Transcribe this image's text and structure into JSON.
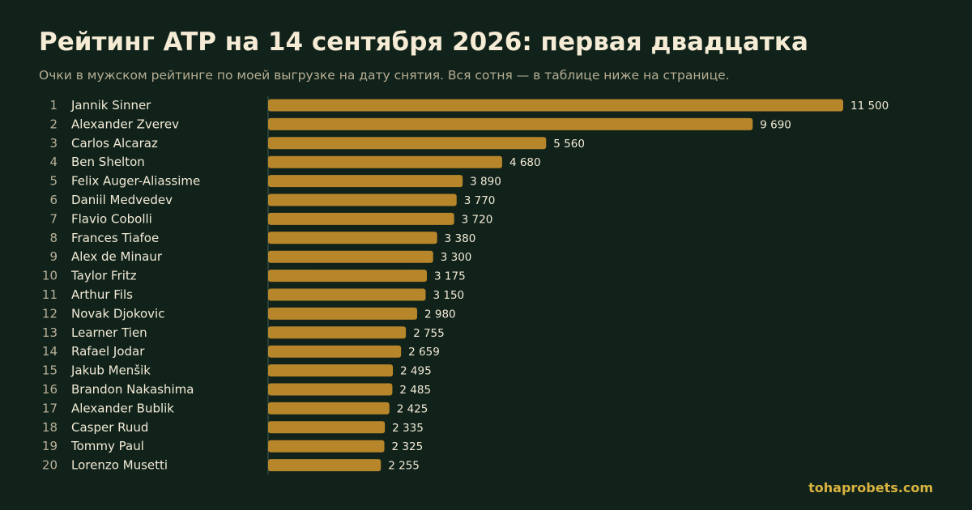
{
  "header": {
    "title": "Рейтинг ATP на 14 сентября 2026: первая двадцатка",
    "subtitle": "Очки в мужском рейтинге по моей выгрузке на дату снятия. Вся сотня — в таблице ниже на странице."
  },
  "brand": "tohaprobets.com",
  "colors": {
    "background": "#10221a",
    "bar": "#b8862a",
    "axis": "#4a5a4e"
  },
  "chart_data": {
    "type": "bar",
    "orientation": "horizontal",
    "title": "Рейтинг ATP на 14 сентября 2026: первая двадцатка",
    "ranks": [
      "1",
      "2",
      "3",
      "4",
      "5",
      "6",
      "7",
      "8",
      "9",
      "10",
      "11",
      "12",
      "13",
      "14",
      "15",
      "16",
      "17",
      "18",
      "19",
      "20"
    ],
    "categories": [
      "Jannik Sinner",
      "Alexander Zverev",
      "Carlos Alcaraz",
      "Ben Shelton",
      "Felix Auger-Aliassime",
      "Daniil Medvedev",
      "Flavio Cobolli",
      "Frances Tiafoe",
      "Alex de Minaur",
      "Taylor Fritz",
      "Arthur Fils",
      "Novak Djokovic",
      "Learner Tien",
      "Rafael Jodar",
      "Jakub Menšik",
      "Brandon Nakashima",
      "Alexander Bublik",
      "Casper Ruud",
      "Tommy Paul",
      "Lorenzo Musetti"
    ],
    "values": [
      11500,
      9690,
      5560,
      4680,
      3890,
      3770,
      3720,
      3380,
      3300,
      3175,
      3150,
      2980,
      2755,
      2659,
      2495,
      2485,
      2425,
      2335,
      2325,
      2255
    ],
    "value_labels": [
      "11 500",
      "9 690",
      "5 560",
      "4 680",
      "3 890",
      "3 770",
      "3 720",
      "3 380",
      "3 300",
      "3 175",
      "3 150",
      "2 980",
      "2 755",
      "2 659",
      "2 495",
      "2 485",
      "2 425",
      "2 335",
      "2 325",
      "2 255"
    ],
    "xlim": [
      0,
      11500
    ],
    "grid": false,
    "legend": "none"
  }
}
